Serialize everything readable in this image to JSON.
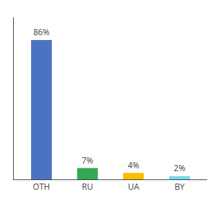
{
  "chart_data": {
    "type": "bar",
    "categories": [
      "OTH",
      "RU",
      "UA",
      "BY"
    ],
    "values": [
      86,
      7,
      4,
      2
    ],
    "value_labels": [
      "86%",
      "7%",
      "4%",
      "2%"
    ],
    "colors": [
      "#4C72C4",
      "#34A853",
      "#FBBC04",
      "#74D7EE"
    ],
    "ylim": [
      0,
      100
    ],
    "data_labels": true,
    "tick_labels": "x",
    "grid": false
  }
}
